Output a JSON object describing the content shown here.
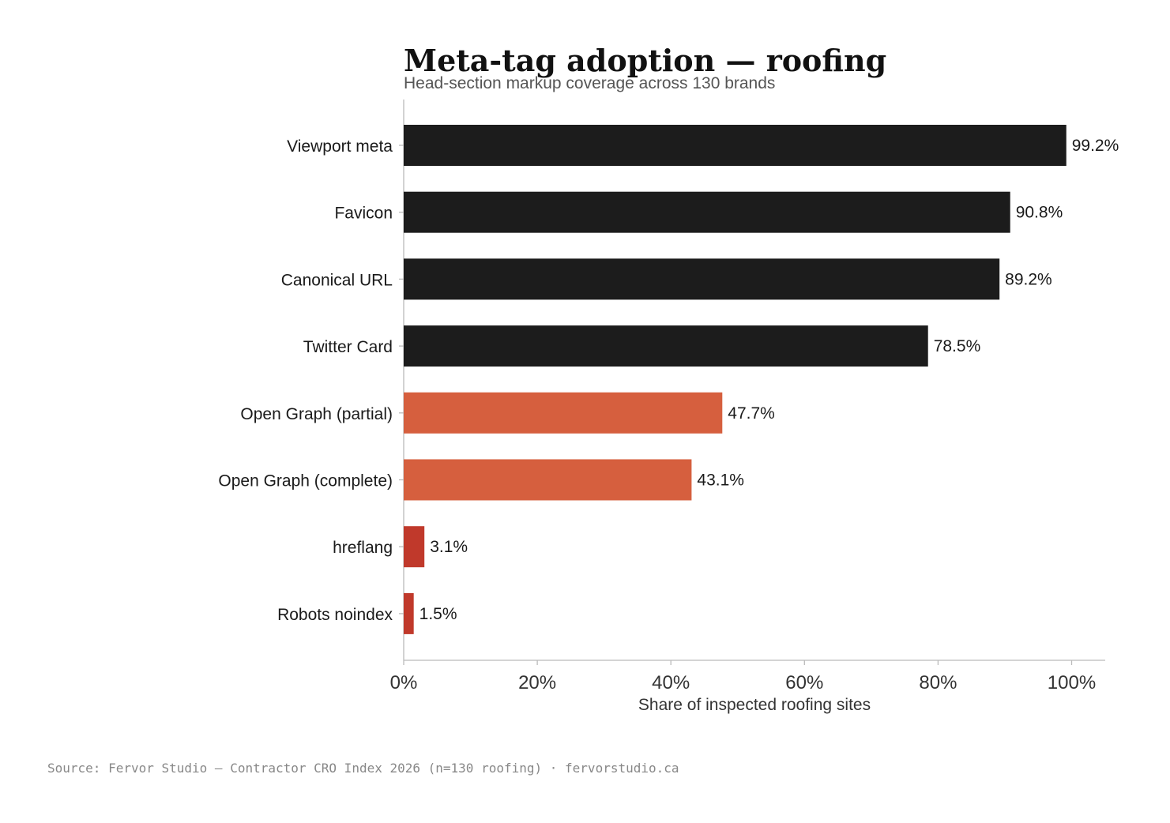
{
  "chart_data": {
    "type": "bar",
    "orientation": "horizontal",
    "title": "Meta-tag adoption — roofing",
    "subtitle": "Head-section markup coverage across 130 brands",
    "xlabel": "Share of inspected roofing sites",
    "ylabel": "",
    "xlim": [
      0,
      105
    ],
    "x_ticks": [
      0,
      20,
      40,
      60,
      80,
      100
    ],
    "x_tick_labels": [
      "0%",
      "20%",
      "40%",
      "60%",
      "80%",
      "100%"
    ],
    "grid": false,
    "legend": "none",
    "categories": [
      "Viewport meta",
      "Favicon",
      "Canonical URL",
      "Twitter Card",
      "Open Graph (partial)",
      "Open Graph (complete)",
      "hreflang",
      "Robots noindex"
    ],
    "values": [
      99.2,
      90.8,
      89.2,
      78.5,
      47.7,
      43.1,
      3.1,
      1.5
    ],
    "value_labels": [
      "99.2%",
      "90.8%",
      "89.2%",
      "78.5%",
      "47.7%",
      "43.1%",
      "3.1%",
      "1.5%"
    ],
    "bar_colors": [
      "#1c1c1c",
      "#1c1c1c",
      "#1c1c1c",
      "#1c1c1c",
      "#d65f3e",
      "#d65f3e",
      "#c0392b",
      "#c0392b"
    ]
  },
  "source": "Source: Fervor Studio — Contractor CRO Index 2026 (n=130 roofing) · fervorstudio.ca"
}
